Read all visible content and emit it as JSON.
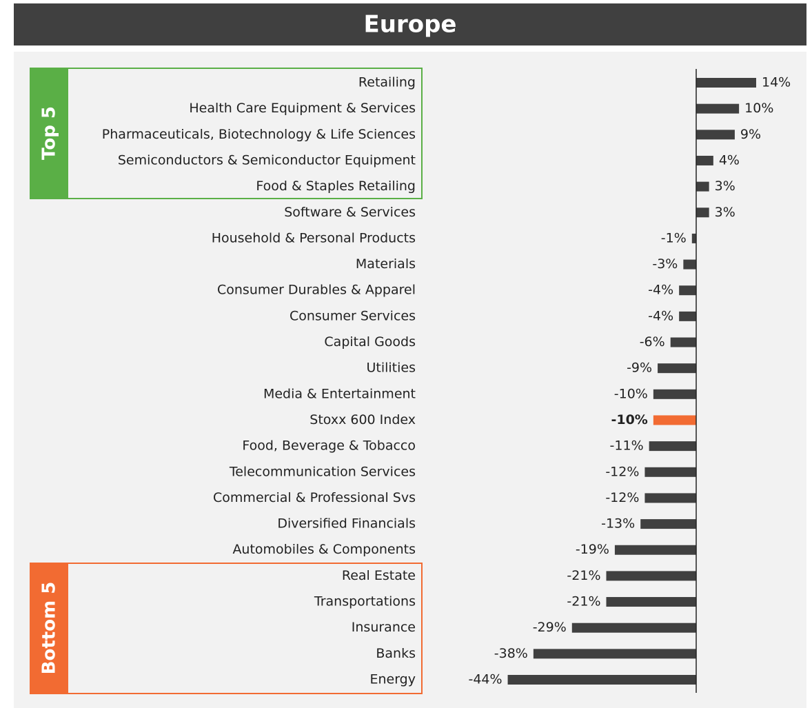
{
  "chart_data": {
    "type": "bar",
    "orientation": "horizontal",
    "title": "Europe",
    "categories": [
      "Retailing",
      "Health Care Equipment & Services",
      "Pharmaceuticals, Biotechnology & Life Sciences",
      "Semiconductors & Semiconductor Equipment",
      "Food & Staples Retailing",
      "Software & Services",
      "Household & Personal Products",
      "Materials",
      "Consumer Durables & Apparel",
      "Consumer Services",
      "Capital Goods",
      "Utilities",
      "Media & Entertainment",
      "Stoxx 600 Index",
      "Food, Beverage & Tobacco",
      "Telecommunication Services",
      "Commercial & Professional Svs",
      "Diversified Financials",
      "Automobiles & Components",
      "Real Estate",
      "Transportations",
      "Insurance",
      "Banks",
      "Energy"
    ],
    "values": [
      14,
      10,
      9,
      4,
      3,
      3,
      -1,
      -3,
      -4,
      -4,
      -6,
      -9,
      -10,
      -10,
      -11,
      -12,
      -12,
      -13,
      -19,
      -21,
      -21,
      -29,
      -38,
      -44
    ],
    "value_labels": [
      "14%",
      "10%",
      "9%",
      "4%",
      "3%",
      "3%",
      "-1%",
      "-3%",
      "-4%",
      "-4%",
      "-6%",
      "-9%",
      "-10%",
      "-10%",
      "-11%",
      "-12%",
      "-12%",
      "-13%",
      "-19%",
      "-21%",
      "-21%",
      "-29%",
      "-38%",
      "-44%"
    ],
    "colors": [
      "#404040",
      "#404040",
      "#404040",
      "#404040",
      "#404040",
      "#404040",
      "#404040",
      "#404040",
      "#404040",
      "#404040",
      "#404040",
      "#404040",
      "#404040",
      "#f26b32",
      "#404040",
      "#404040",
      "#404040",
      "#404040",
      "#404040",
      "#404040",
      "#404040",
      "#404040",
      "#404040",
      "#404040"
    ],
    "groups": [
      {
        "label": "Top 5"
      },
      {
        "label": "Bottom 5"
      }
    ]
  }
}
